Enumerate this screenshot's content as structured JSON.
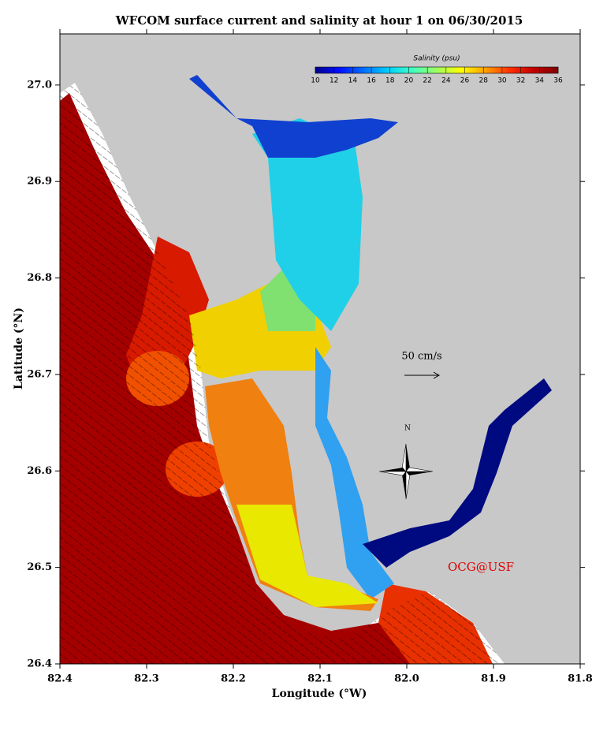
{
  "chart_data": {
    "type": "map",
    "title": "WFCOM surface current and salinity at hour 1 on 06/30/2015",
    "xlabel": "Longitude (°W)",
    "ylabel": "Latitude (°N)",
    "xlim": [
      82.4,
      81.8
    ],
    "xticks": [
      82.4,
      82.3,
      82.2,
      82.1,
      {
        "value": 82,
        "label": "82.0"
      },
      81.9,
      81.8
    ],
    "ylim": [
      26.4,
      27.053
    ],
    "yticks": [
      26.4,
      26.5,
      26.6,
      26.7,
      26.8,
      26.9,
      {
        "value": 27,
        "label": "27.0"
      }
    ],
    "colorbar": {
      "label": "Salinity (psu)",
      "lim": [
        10,
        36
      ],
      "ticks": [
        10,
        12,
        14,
        16,
        18,
        20,
        22,
        24,
        26,
        28,
        30,
        32,
        34,
        36
      ],
      "colors": [
        "#00008f",
        "#0010ff",
        "#0070ff",
        "#00d0ff",
        "#40ffc0",
        "#a0ff60",
        "#ffff00",
        "#ffa000",
        "#ff3000",
        "#c00000",
        "#800000"
      ]
    },
    "annotations": [
      "50 cm/s",
      "N",
      "OCG@USF"
    ]
  }
}
